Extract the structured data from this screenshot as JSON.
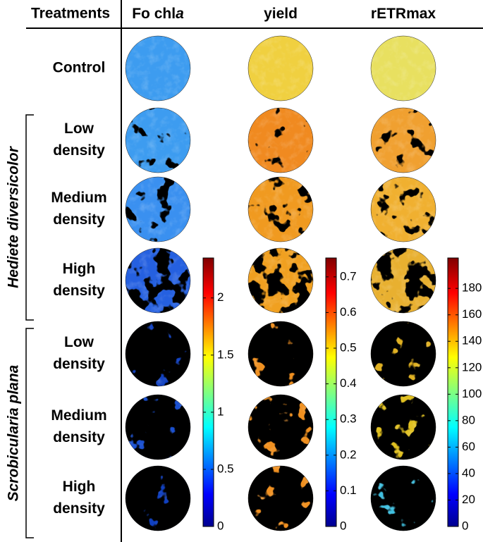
{
  "header": {
    "treatments": "Treatments",
    "columns": [
      {
        "text": "Fo chl",
        "italic_suffix": "a"
      },
      {
        "text": "yield"
      },
      {
        "text": "rETRmax"
      }
    ]
  },
  "rows": [
    {
      "label": [
        "Control"
      ]
    },
    {
      "label": [
        "Low",
        "density"
      ]
    },
    {
      "label": [
        "Medium",
        "density"
      ]
    },
    {
      "label": [
        "High",
        "density"
      ]
    },
    {
      "label": [
        "Low",
        "density"
      ]
    },
    {
      "label": [
        "Medium",
        "density"
      ]
    },
    {
      "label": [
        "High",
        "density"
      ]
    }
  ],
  "groups": [
    {
      "label": "Hediete diversicolor",
      "rows": [
        1,
        3
      ]
    },
    {
      "label": "Scrobicularia plana",
      "rows": [
        4,
        6
      ]
    }
  ],
  "colorbars": [
    {
      "lim": [
        0,
        2.35
      ],
      "ticks": [
        0,
        0.5,
        1,
        1.5,
        2
      ]
    },
    {
      "lim": [
        0,
        0.753
      ],
      "ticks": [
        0,
        0.1,
        0.2,
        0.3,
        0.4,
        0.5,
        0.6,
        0.7
      ]
    },
    {
      "lim": [
        0,
        203
      ],
      "ticks": [
        0,
        20,
        40,
        60,
        80,
        100,
        120,
        140,
        160,
        180
      ]
    }
  ]
}
